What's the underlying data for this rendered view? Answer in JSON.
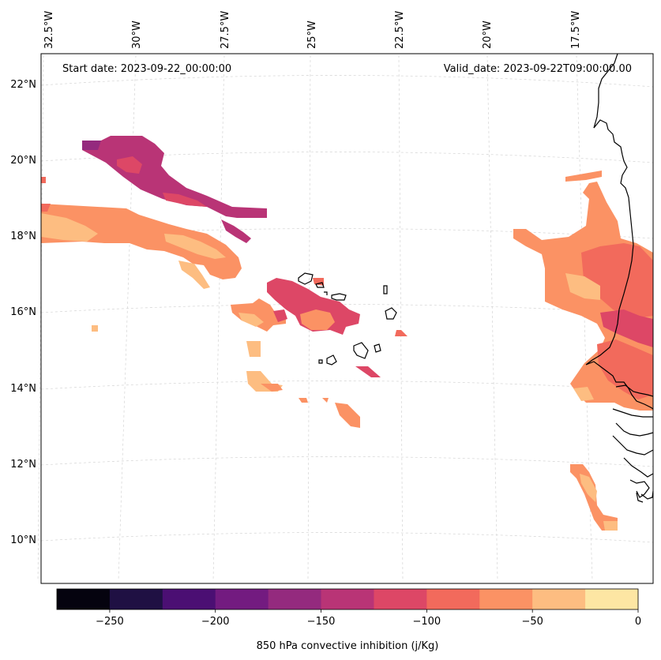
{
  "header": {
    "start_date": "Start date: 2023-09-22_00:00:00",
    "valid_date": "Valid_date: 2023-09-22T09:00:00.00"
  },
  "longitude_labels": [
    "32.5°W",
    "30°W",
    "27.5°W",
    "25°W",
    "22.5°W",
    "20°W",
    "17.5°W"
  ],
  "latitude_labels": [
    "22°N",
    "20°N",
    "18°N",
    "16°N",
    "14°N",
    "12°N",
    "10°N"
  ],
  "colorbar": {
    "label": "850 hPa convective inhibition (j/Kg)",
    "ticks": [
      "−250",
      "−200",
      "−150",
      "−100",
      "−50",
      "0"
    ],
    "levels": [
      -275,
      -250,
      -225,
      -200,
      -175,
      -150,
      -125,
      -100,
      -75,
      -50,
      -25,
      0
    ],
    "colors": [
      "#05030f",
      "#1f1043",
      "#4b0f73",
      "#731b80",
      "#942a7e",
      "#b93476",
      "#dd4766",
      "#f26a5c",
      "#fb9264",
      "#fdbd81",
      "#fde6a3"
    ]
  },
  "palette": {
    "ocean": "#ffffff",
    "coastline": "#000000",
    "gridline": "#d4d4d4"
  }
}
